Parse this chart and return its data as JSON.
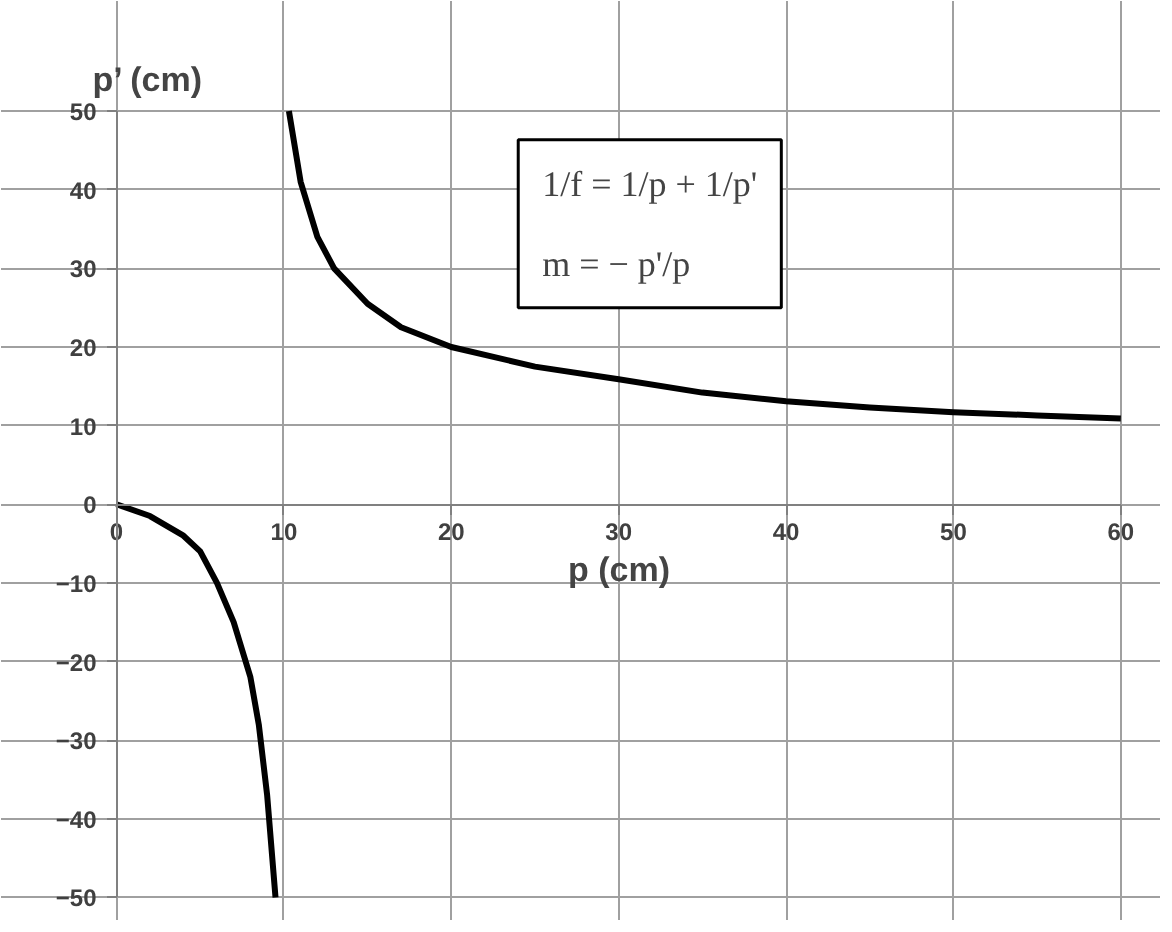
{
  "chart_data": {
    "type": "line",
    "xlabel": "p (cm)",
    "ylabel": "p’ (cm)",
    "annotations": [
      "1/f = 1/p + 1/p'",
      "m = − p'/p"
    ],
    "xlim": [
      0,
      60
    ],
    "xticks": [
      0,
      10,
      20,
      30,
      40,
      50,
      60
    ],
    "ylim": [
      -50,
      50
    ],
    "yticks": [
      -50,
      -40,
      -30,
      -20,
      -10,
      0,
      10,
      20,
      30,
      40,
      50
    ],
    "grid": true,
    "series": [
      {
        "color": "#000000",
        "x": [
          0,
          2,
          4,
          5,
          6,
          7,
          8,
          8.5,
          9,
          9.5
        ],
        "values": [
          0,
          -1.5,
          -4,
          -6,
          -10,
          -15,
          -22,
          -28,
          -37,
          -50
        ]
      },
      {
        "color": "#000000",
        "x": [
          10.3,
          11,
          12,
          13,
          15,
          17,
          20,
          25,
          30,
          35,
          40,
          45,
          50,
          55,
          60
        ],
        "values": [
          50,
          41,
          34,
          30,
          25.5,
          22.5,
          20,
          17.5,
          15.9,
          14.2,
          13.1,
          12.3,
          11.7,
          11.3,
          10.9
        ]
      }
    ]
  }
}
